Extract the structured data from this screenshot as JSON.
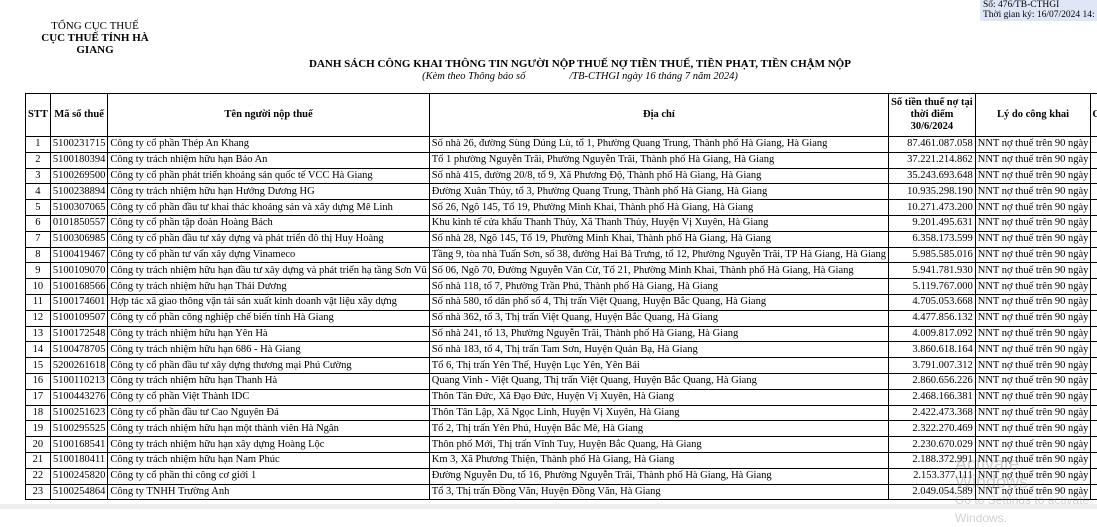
{
  "stamp": {
    "number": "Số: 476/TB-CTHGI",
    "signed_time": "Thời gian ký: 16/07/2024 14:"
  },
  "agency": {
    "parent": "TỔNG CỤC THUẾ",
    "name": "CỤC THUẾ TỈNH HÀ GIANG"
  },
  "document": {
    "title": "DANH SÁCH CÔNG KHAI THÔNG TIN NGƯỜI NỘP THUẾ NỢ TIỀN THUẾ, TIỀN PHẠT, TIỀN CHẬM NỘP",
    "subtitle_left": "(Kèm theo Thông báo số",
    "subtitle_right": "/TB-CTHGI ngày 16 tháng 7 năm 2024)"
  },
  "table": {
    "headers": {
      "stt": "STT",
      "tax_id": "Mã số thuế",
      "name": "Tên người nộp thuế",
      "address": "Địa chỉ",
      "amount_l1": "Số tiền thuế nợ tại",
      "amount_l2": "thời điểm",
      "amount_l3": "30/6/2024",
      "reason": "Lý do công khai",
      "extra": "G"
    },
    "rows": [
      {
        "stt": "1",
        "tax_id": "5100231715",
        "name": "Công ty cổ phần Thép An Khang",
        "address": "Số nhà 26, đường Sùng Dúng Lù, tổ 1, Phường Quang Trung, Thành phố Hà Giang, Hà Giang",
        "amount": "87.461.087.058",
        "reason": "NNT nợ thuế trên 90 ngày"
      },
      {
        "stt": "2",
        "tax_id": "5100180394",
        "name": "Công ty trách nhiệm hữu hạn Bảo An",
        "address": "Tổ 1 phường Nguyễn Trãi, Phường Nguyễn Trãi, Thành phố Hà Giang, Hà Giang",
        "amount": "37.221.214.862",
        "reason": "NNT nợ thuế trên 90 ngày"
      },
      {
        "stt": "3",
        "tax_id": "5100269500",
        "name": "Công ty cổ phần phát triển khoáng sản quốc tế VCC Hà Giang",
        "address": "Số nhà 415, đường 20/8, tổ 9, Xã Phương Độ, Thành phố Hà Giang, Hà Giang",
        "amount": "35.243.693.648",
        "reason": "NNT nợ thuế trên 90 ngày"
      },
      {
        "stt": "4",
        "tax_id": "5100238894",
        "name": "Công ty trách nhiệm hữu hạn Hướng Dương HG",
        "address": "Đường Xuân Thủy, tổ 3, Phường Quang Trung, Thành phố Hà Giang, Hà Giang",
        "amount": "10.935.298.190",
        "reason": "NNT nợ thuế trên 90 ngày"
      },
      {
        "stt": "5",
        "tax_id": "5100307065",
        "name": "Công ty cổ phần đầu tư khai thác khoáng sản và xây dựng Mê Linh",
        "address": "Số 26, Ngõ 145, Tổ 19, Phường Minh Khai, Thành phố Hà Giang, Hà Giang",
        "amount": "10.271.473.200",
        "reason": "NNT nợ thuế trên 90 ngày"
      },
      {
        "stt": "6",
        "tax_id": "0101850557",
        "name": "Công ty cổ phần tập đoàn Hoàng Bách",
        "address": "Khu kinh tế cửa khẩu Thanh Thủy, Xã Thanh Thủy, Huyện Vị Xuyên, Hà Giang",
        "amount": "9.201.495.631",
        "reason": "NNT nợ thuế trên 90 ngày"
      },
      {
        "stt": "7",
        "tax_id": "5100306985",
        "name": "Công ty cổ phần đầu tư xây dựng và phát triển đô thị Huy Hoàng",
        "address": "Số nhà 28, Ngõ 145, Tổ 19, Phường Minh Khai, Thành phố Hà Giang, Hà Giang",
        "amount": "6.358.173.599",
        "reason": "NNT nợ thuế trên 90 ngày"
      },
      {
        "stt": "8",
        "tax_id": "5100419467",
        "name": "Công ty cổ phần tư vấn xây dựng Vinameco",
        "address": "Tầng 9, tòa nhà Tuấn Sơn, số 38, đường Hai Bà Trưng, tổ 12, Phường Nguyễn Trãi, TP Hà Giang, Hà Giang",
        "amount": "5.985.585.016",
        "reason": "NNT nợ thuế trên 90 ngày"
      },
      {
        "stt": "9",
        "tax_id": "5100109070",
        "name": "Công ty trách nhiệm hữu hạn đầu tư xây dựng và phát triển hạ tầng Sơn Vũ",
        "address": "Số 06, Ngõ 70, Đường Nguyễn Văn Cừ, Tổ 21, Phường Minh Khai, Thành phố Hà Giang, Hà Giang",
        "amount": "5.941.781.930",
        "reason": "NNT nợ thuế trên 90 ngày"
      },
      {
        "stt": "10",
        "tax_id": "5100168566",
        "name": "Công ty trách nhiệm hữu hạn Thái Dương",
        "address": "Số nhà 118, tổ 7, Phường Trần Phú, Thành phố Hà Giang, Hà Giang",
        "amount": "5.119.767.000",
        "reason": "NNT nợ thuế trên 90 ngày"
      },
      {
        "stt": "11",
        "tax_id": "5100174601",
        "name": "Hợp tác xã giao thông vận tải sản xuất kinh doanh vật liệu xây dựng",
        "address": "Số nhà 580, tổ dân phố số 4, Thị trấn Việt Quang, Huyện Bắc Quang, Hà Giang",
        "amount": "4.705.053.668",
        "reason": "NNT nợ thuế trên 90 ngày"
      },
      {
        "stt": "12",
        "tax_id": "5100109507",
        "name": "Công ty cổ phần công nghiệp chế biến tỉnh Hà Giang",
        "address": "Số nhà 362, tổ 3, Thị trấn Việt Quang, Huyện Bắc Quang, Hà Giang",
        "amount": "4.477.856.132",
        "reason": "NNT nợ thuế trên 90 ngày"
      },
      {
        "stt": "13",
        "tax_id": "5100172548",
        "name": "Công ty trách nhiệm hữu hạn Yên Hà",
        "address": "Số nhà 241, tổ 13, Phường Nguyễn Trãi, Thành phố Hà Giang, Hà Giang",
        "amount": "4.009.817.092",
        "reason": "NNT nợ thuế trên 90 ngày"
      },
      {
        "stt": "14",
        "tax_id": "5100478705",
        "name": "Công ty trách nhiệm hữu hạn 686 - Hà Giang",
        "address": "Số nhà 183, tổ 4, Thị trấn Tam Sơn, Huyện Quản Bạ, Hà Giang",
        "amount": "3.860.618.164",
        "reason": "NNT nợ thuế trên 90 ngày"
      },
      {
        "stt": "15",
        "tax_id": "5200261618",
        "name": "Công ty cổ phần đầu tư xây dựng thương mại Phú Cường",
        "address": "Tổ 6, Thị trấn Yên Thế, Huyện Lục Yên, Yên Bái",
        "amount": "3.791.007.312",
        "reason": "NNT nợ thuế trên 90 ngày"
      },
      {
        "stt": "16",
        "tax_id": "5100110213",
        "name": "Công ty trách nhiệm hữu hạn Thanh Hà",
        "address": "Quang Vinh - Việt Quang, Thị trấn Việt Quang, Huyện Bắc Quang, Hà Giang",
        "amount": "2.860.656.226",
        "reason": "NNT nợ thuế trên 90 ngày"
      },
      {
        "stt": "17",
        "tax_id": "5100443276",
        "name": "Công ty cổ phần Việt Thành IDC",
        "address": "Thôn Tân Đức, Xã Đạo Đức, Huyện Vị Xuyên, Hà Giang",
        "amount": "2.468.166.381",
        "reason": "NNT nợ thuế trên 90 ngày"
      },
      {
        "stt": "18",
        "tax_id": "5100251623",
        "name": "Công ty cổ phần đầu tư Cao Nguyên Đá",
        "address": "Thôn Tân Lập, Xã Ngọc Linh, Huyện Vị Xuyên, Hà Giang",
        "amount": "2.422.473.368",
        "reason": "NNT nợ thuế trên 90 ngày"
      },
      {
        "stt": "19",
        "tax_id": "5100295525",
        "name": "Công ty trách nhiệm hữu hạn một thành viên Hà Ngân",
        "address": "Tổ 2, Thị trấn Yên Phú, Huyện Bắc Mê, Hà Giang",
        "amount": "2.322.270.469",
        "reason": "NNT nợ thuế trên 90 ngày"
      },
      {
        "stt": "20",
        "tax_id": "5100168541",
        "name": "Công ty trách nhiệm hữu hạn xây dựng Hoàng Lộc",
        "address": "Thôn phố Mới, Thị trấn Vĩnh Tuy, Huyện Bắc Quang, Hà Giang",
        "amount": "2.230.670.029",
        "reason": "NNT nợ thuế trên 90 ngày"
      },
      {
        "stt": "21",
        "tax_id": "5100180411",
        "name": "Công ty trách nhiệm hữu hạn Nam Phúc",
        "address": "Km 3, Xã Phương Thiện, Thành phố Hà Giang, Hà Giang",
        "amount": "2.188.372.991",
        "reason": "NNT nợ thuế trên 90 ngày"
      },
      {
        "stt": "22",
        "tax_id": "5100245820",
        "name": "Công ty cổ phần thi công cơ giới 1",
        "address": "Đường Nguyễn Du, tổ 16, Phường Nguyễn Trãi, Thành phố Hà Giang, Hà Giang",
        "amount": "2.153.377.111",
        "reason": "NNT nợ thuế trên 90 ngày"
      },
      {
        "stt": "23",
        "tax_id": "5100254864",
        "name": "Công ty TNHH Trường Anh",
        "address": "Tổ 3, Thị trấn Đồng Văn, Huyện Đồng Văn, Hà Giang",
        "amount": "2.049.054.589",
        "reason": "NNT nợ thuế trên 90 ngày"
      }
    ]
  },
  "watermark": {
    "line1": "Activate Windows",
    "line2": "Go to Settings to activate Windows."
  }
}
